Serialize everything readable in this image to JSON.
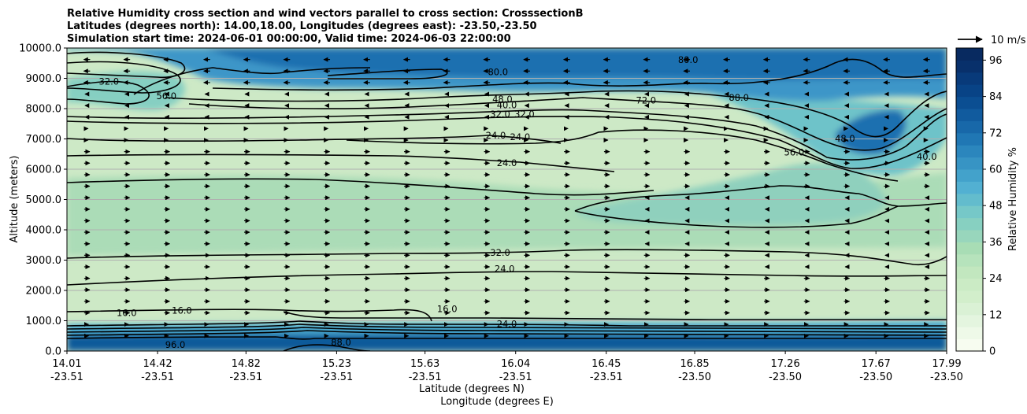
{
  "chart_data": {
    "type": "contourf",
    "title_lines": [
      "Relative Humidity cross section and wind vectors parallel to cross section: CrosssectionB",
      "Latitudes (degrees north): 14.00,18.00, Longitudes (degrees east): -23.50,-23.50",
      "Simulation start time: 2024-06-01 00:00:00, Valid time: 2024-06-03 22:00:00"
    ],
    "xlabel": "Latitude (degrees N)",
    "xlabel2": "Longitude (degrees E)",
    "ylabel": "Altitude (meters)",
    "x_ticks": [
      {
        "lat": "14.01",
        "lon": "-23.51"
      },
      {
        "lat": "14.42",
        "lon": "-23.51"
      },
      {
        "lat": "14.82",
        "lon": "-23.51"
      },
      {
        "lat": "15.23",
        "lon": "-23.51"
      },
      {
        "lat": "15.63",
        "lon": "-23.51"
      },
      {
        "lat": "16.04",
        "lon": "-23.51"
      },
      {
        "lat": "16.45",
        "lon": "-23.51"
      },
      {
        "lat": "16.85",
        "lon": "-23.50"
      },
      {
        "lat": "17.26",
        "lon": "-23.50"
      },
      {
        "lat": "17.67",
        "lon": "-23.50"
      },
      {
        "lat": "17.99",
        "lon": "-23.50"
      }
    ],
    "x_values": [
      14.01,
      14.42,
      14.82,
      15.23,
      15.63,
      16.04,
      16.45,
      16.85,
      17.26,
      17.67,
      17.99
    ],
    "y_ticks": [
      0.0,
      1000.0,
      2000.0,
      3000.0,
      4000.0,
      5000.0,
      6000.0,
      7000.0,
      8000.0,
      9000.0,
      10000.0
    ],
    "y_tick_labels": [
      "0.0",
      "1000.0",
      "2000.0",
      "3000.0",
      "4000.0",
      "5000.0",
      "6000.0",
      "7000.0",
      "8000.0",
      "9000.0",
      "10000.0"
    ],
    "ylim": [
      0,
      10000
    ],
    "grid": "horizontal",
    "colorbar": {
      "label": "Relative Humidity %",
      "ticks": [
        0,
        12,
        24,
        36,
        48,
        60,
        72,
        84,
        96
      ],
      "tick_labels": [
        "0",
        "12",
        "24",
        "36",
        "48",
        "60",
        "72",
        "84",
        "96"
      ],
      "levels": [
        0,
        4,
        8,
        12,
        16,
        20,
        24,
        28,
        32,
        36,
        40,
        44,
        48,
        52,
        56,
        60,
        64,
        68,
        72,
        76,
        80,
        84,
        88,
        92,
        96,
        100
      ],
      "colormap": "GnBu"
    },
    "quiver_key": {
      "label": "10 m/s"
    },
    "contour_labels": [
      {
        "text": "32.0",
        "x": 14.2,
        "y": 8880
      },
      {
        "text": "56.0",
        "x": 14.46,
        "y": 8400
      },
      {
        "text": "80.0",
        "x": 15.96,
        "y": 9200
      },
      {
        "text": "80.0",
        "x": 16.82,
        "y": 9600
      },
      {
        "text": "48.0",
        "x": 15.98,
        "y": 8300
      },
      {
        "text": "40.0",
        "x": 16.0,
        "y": 8100
      },
      {
        "text": "32.0",
        "x": 15.97,
        "y": 7800
      },
      {
        "text": "32.0",
        "x": 16.08,
        "y": 7800
      },
      {
        "text": "72.0",
        "x": 16.63,
        "y": 8260
      },
      {
        "text": "88.0",
        "x": 17.05,
        "y": 8350
      },
      {
        "text": "24.0",
        "x": 15.95,
        "y": 7100
      },
      {
        "text": "24.0",
        "x": 16.06,
        "y": 7050
      },
      {
        "text": "24.0",
        "x": 16.0,
        "y": 6200
      },
      {
        "text": "56.0",
        "x": 17.3,
        "y": 6550
      },
      {
        "text": "48.0",
        "x": 17.53,
        "y": 7000
      },
      {
        "text": "40.0",
        "x": 17.9,
        "y": 6400
      },
      {
        "text": "32.0",
        "x": 15.97,
        "y": 3230
      },
      {
        "text": "24.0",
        "x": 15.99,
        "y": 2700
      },
      {
        "text": "16.0",
        "x": 14.28,
        "y": 1250
      },
      {
        "text": "16.0",
        "x": 14.53,
        "y": 1320
      },
      {
        "text": "16.0",
        "x": 15.73,
        "y": 1380
      },
      {
        "text": "24.0",
        "x": 16.0,
        "y": 880
      },
      {
        "text": "96.0",
        "x": 14.5,
        "y": 200
      },
      {
        "text": "88.0",
        "x": 15.25,
        "y": 270
      }
    ]
  }
}
